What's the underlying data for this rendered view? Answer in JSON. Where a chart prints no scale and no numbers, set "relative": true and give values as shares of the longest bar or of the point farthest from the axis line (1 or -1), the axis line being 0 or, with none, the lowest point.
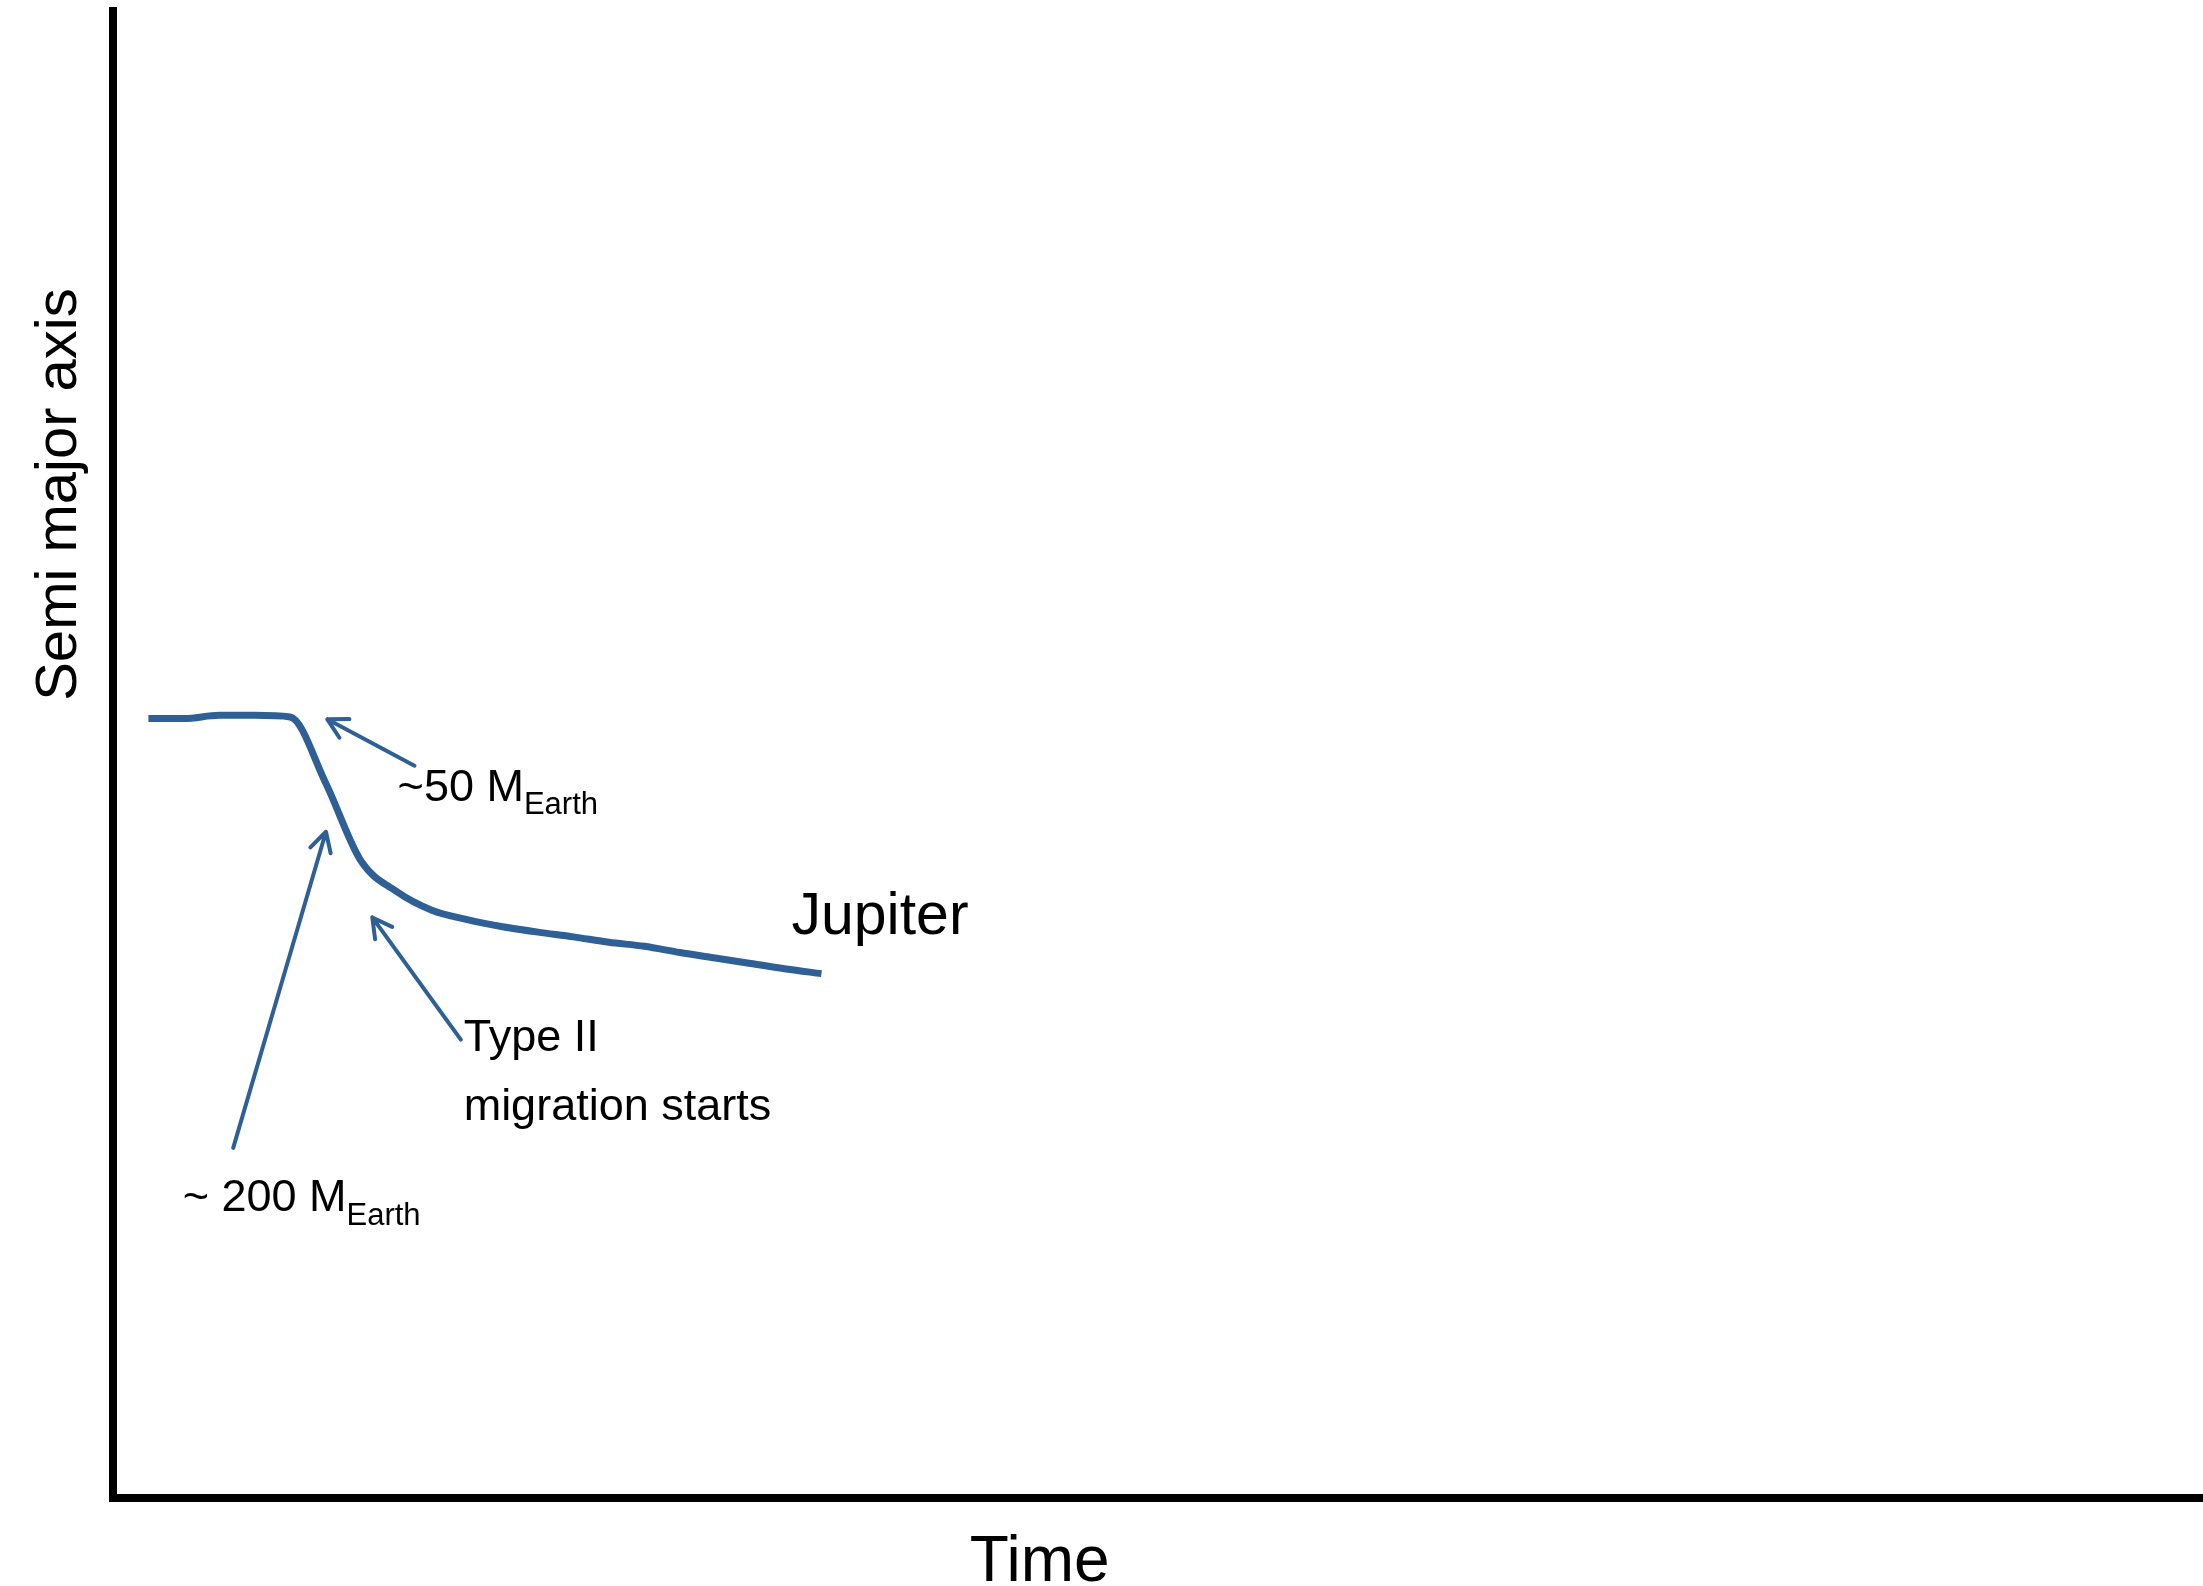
{
  "chart_data": {
    "type": "line",
    "relative": true,
    "xlabel": "Time",
    "ylabel": "Semi major axis",
    "grid": false,
    "legend": false,
    "marker": "none",
    "line_style": "solid",
    "categories": [
      null,
      null,
      null,
      null,
      null,
      null,
      null,
      null,
      null,
      null,
      null,
      null,
      null,
      null,
      null,
      null,
      null,
      null,
      null,
      null,
      null,
      null,
      null,
      null,
      null,
      null,
      null,
      null,
      null,
      null,
      null,
      null,
      null,
      null,
      null,
      null,
      null,
      null,
      null,
      null,
      null,
      null,
      null,
      null,
      null,
      null,
      null,
      null,
      null,
      null,
      null,
      null,
      null,
      null,
      null,
      null,
      null,
      null,
      null,
      null
    ],
    "series": [
      {
        "name": "Jupiter",
        "color": "#2e6095",
        "values": [
          null,
          0.996,
          0.996,
          1,
          1,
          0.998,
          0.914,
          0.814,
          0.775,
          0.751,
          0.739,
          0.73,
          0.723,
          0.717,
          0.71,
          0.705,
          0.697,
          0.69,
          0.683,
          0.676,
          0.67,
          null,
          null,
          null,
          null,
          null,
          null,
          null,
          null,
          null,
          null,
          null,
          null,
          null,
          null,
          null,
          null,
          null,
          null,
          null,
          null,
          null,
          null,
          null,
          null,
          null,
          null,
          null,
          null,
          null,
          null,
          null,
          null,
          null,
          null,
          null,
          null,
          null,
          null,
          null
        ]
      }
    ],
    "annotations": [
      "~50 M$_{Earth}$",
      "~ 200 M$_{Earth}$",
      "Type II\nmigration starts"
    ]
  }
}
